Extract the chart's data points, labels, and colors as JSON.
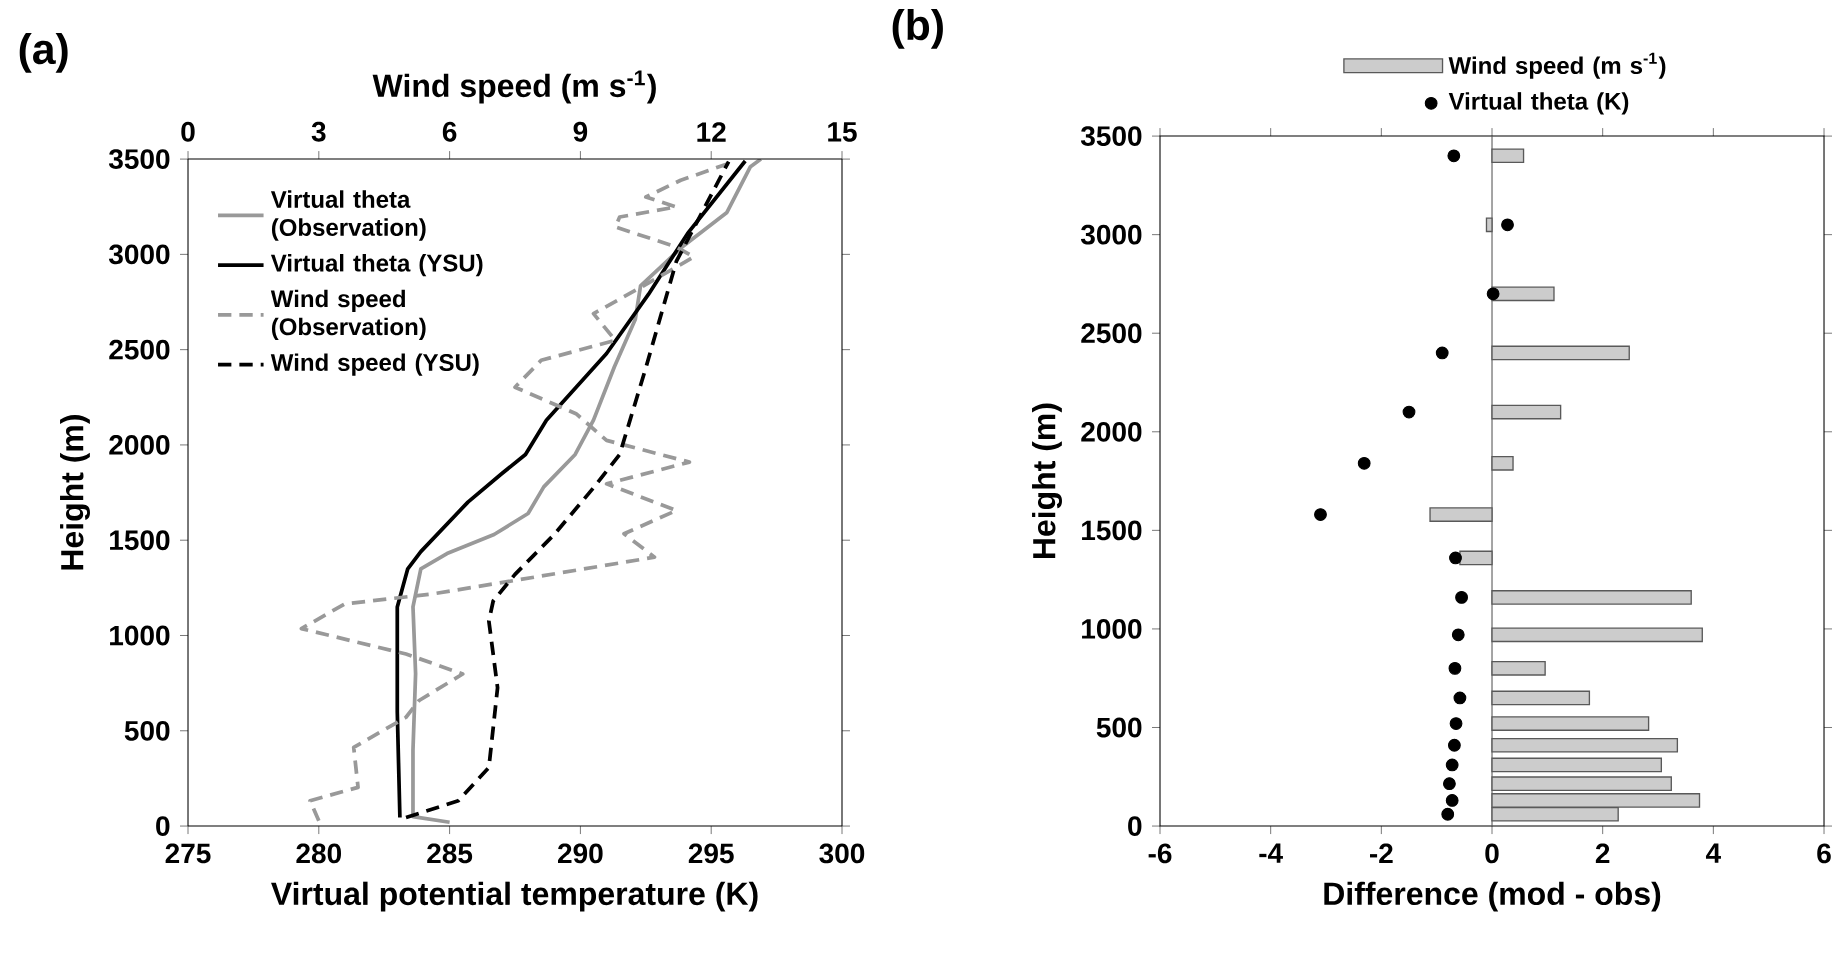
{
  "chart_data": [
    {
      "type": "line",
      "title": "(a)",
      "orientation": "horizontal",
      "xlabel": "Virtual potential temperature (K)",
      "x2label": "Wind speed (m s$^{-1}$)",
      "ylabel": "Height (m)",
      "xlim": [
        275,
        300
      ],
      "xticks": [
        275,
        280,
        285,
        290,
        295,
        300
      ],
      "x2lim": [
        0,
        15
      ],
      "x2ticks": [
        0,
        3,
        6,
        9,
        12,
        15
      ],
      "ylim": [
        0,
        3500
      ],
      "yticks": [
        0,
        500,
        1000,
        1500,
        2000,
        2500,
        3000,
        3500
      ],
      "legend": "top left",
      "series": [
        {
          "name": "Virtual theta (Observation)",
          "color": "#999999",
          "line_style": "solid",
          "x": [
            20,
            50,
            400,
            800,
            1150,
            1350,
            1430,
            1530,
            1640,
            1780,
            1950,
            2130,
            2410,
            2660,
            2835,
            3040,
            3220,
            3460,
            3500
          ],
          "values": [
            285.0,
            283.6,
            283.6,
            283.7,
            283.6,
            283.9,
            284.9,
            286.7,
            288.0,
            288.6,
            289.8,
            290.5,
            291.3,
            292.1,
            292.3,
            293.9,
            295.6,
            296.5,
            296.9
          ]
        },
        {
          "name": "Virtual theta (YSU)",
          "color": "#000000",
          "line_style": "solid",
          "x": [
            45,
            600,
            1150,
            1350,
            1440,
            1700,
            1850,
            1950,
            2130,
            2480,
            2790,
            3110,
            3490
          ],
          "values": [
            283.1,
            283.0,
            283.0,
            283.4,
            283.9,
            285.7,
            287.0,
            287.9,
            288.7,
            291.0,
            292.6,
            294.1,
            296.3
          ]
        },
        {
          "name": "Wind speed (Observation)",
          "color": "#999999",
          "line_style": "dashed",
          "axis": "x2",
          "x": [
            28,
            133,
            203,
            413,
            571,
            659,
            798,
            903,
            1036,
            1166,
            1218,
            1289,
            1411,
            1534,
            1656,
            1796,
            1910,
            2024,
            2164,
            2303,
            2444,
            2549,
            2689,
            2829,
            2986,
            3039,
            3144,
            3196,
            3249,
            3301,
            3389,
            3477
          ],
          "values": [
            3.0,
            2.8,
            3.9,
            3.8,
            5.0,
            5.3,
            6.3,
            5.0,
            2.6,
            3.6,
            5.6,
            7.5,
            10.7,
            10.0,
            11.2,
            9.6,
            11.5,
            9.6,
            8.9,
            7.5,
            8.1,
            9.8,
            9.3,
            10.4,
            11.6,
            11.2,
            9.8,
            9.9,
            11.2,
            10.5,
            11.3,
            12.4
          ]
        },
        {
          "name": "Wind speed (YSU)",
          "color": "#000000",
          "line_style": "dashed",
          "axis": "x2",
          "x": [
            45,
            133,
            307,
            726,
            1076,
            1181,
            1321,
            1530,
            1775,
            1950,
            2404,
            2963,
            3487
          ],
          "values": [
            5.0,
            6.2,
            6.9,
            7.1,
            6.9,
            7.0,
            7.5,
            8.4,
            9.3,
            9.9,
            10.5,
            11.2,
            12.4
          ]
        }
      ]
    },
    {
      "type": "bar",
      "title": "(b)",
      "orientation": "horizontal",
      "xlabel": "Difference (mod - obs)",
      "ylabel": "Height (m)",
      "xlim": [
        -6,
        6
      ],
      "xticks": [
        -6,
        -4,
        -2,
        0,
        2,
        4,
        6
      ],
      "ylim": [
        0,
        3500
      ],
      "yticks": [
        0,
        500,
        1000,
        1500,
        2000,
        2500,
        3000,
        3500
      ],
      "legend": "top",
      "ref_lines": [
        {
          "axis": "x",
          "value": 0,
          "color": "#555555"
        }
      ],
      "series": [
        {
          "name": "Wind speed (m s$^{-1}$)",
          "type": "bar",
          "color": "#cccccc",
          "x": [
            3400,
            3050,
            2700,
            2400,
            2100,
            1840,
            1580,
            1360,
            1160,
            970,
            800,
            650,
            520,
            410,
            310,
            215,
            130,
            60
          ],
          "values": [
            0.57,
            -0.1,
            1.12,
            2.48,
            1.24,
            0.38,
            -1.12,
            -0.58,
            3.6,
            3.8,
            0.96,
            1.76,
            2.83,
            3.35,
            3.06,
            3.24,
            3.75,
            2.28
          ]
        },
        {
          "name": "Virtual theta (K)",
          "type": "scatter",
          "marker": "circle",
          "color": "#000000",
          "x": [
            3400,
            3050,
            2700,
            2400,
            2100,
            1840,
            1580,
            1360,
            1160,
            970,
            800,
            650,
            520,
            410,
            310,
            215,
            130,
            60
          ],
          "values": [
            -0.69,
            0.28,
            0.02,
            -0.9,
            -1.5,
            -2.31,
            -3.1,
            -0.66,
            -0.55,
            -0.61,
            -0.67,
            -0.58,
            -0.65,
            -0.68,
            -0.72,
            -0.77,
            -0.72,
            -0.8
          ]
        }
      ]
    }
  ]
}
